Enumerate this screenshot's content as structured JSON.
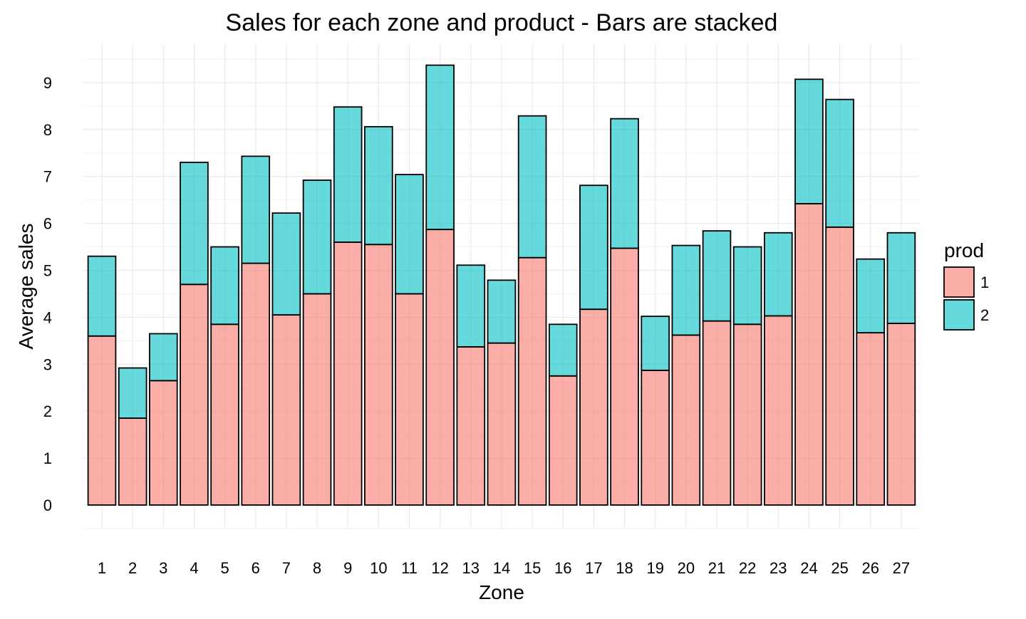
{
  "chart_data": {
    "type": "bar",
    "stacked": true,
    "title": "Sales for each zone and product - Bars are stacked",
    "xlabel": "Zone",
    "ylabel": "Average sales",
    "categories": [
      "1",
      "2",
      "3",
      "4",
      "5",
      "6",
      "7",
      "8",
      "9",
      "10",
      "11",
      "12",
      "13",
      "14",
      "15",
      "16",
      "17",
      "18",
      "19",
      "20",
      "21",
      "22",
      "23",
      "24",
      "25",
      "26",
      "27"
    ],
    "y_ticks": [
      "0",
      "1",
      "2",
      "3",
      "4",
      "5",
      "6",
      "7",
      "8",
      "9"
    ],
    "ylim": [
      -0.7,
      9.8
    ],
    "grid": true,
    "legend": {
      "title": "prod",
      "position": "right"
    },
    "series": [
      {
        "name": "1",
        "color": "#F8766D",
        "values": [
          3.6,
          1.85,
          2.65,
          4.7,
          3.85,
          5.15,
          4.05,
          4.5,
          5.6,
          5.55,
          4.5,
          5.87,
          3.37,
          3.45,
          5.27,
          2.75,
          4.17,
          5.47,
          2.87,
          3.62,
          3.92,
          3.85,
          4.03,
          6.42,
          5.92,
          3.67,
          3.87
        ]
      },
      {
        "name": "2",
        "color": "#00BFC4",
        "values": [
          1.7,
          1.07,
          1.0,
          2.6,
          1.65,
          2.28,
          2.17,
          2.42,
          2.88,
          2.51,
          2.54,
          3.5,
          1.74,
          1.34,
          3.02,
          1.1,
          2.64,
          2.76,
          1.15,
          1.91,
          1.92,
          1.65,
          1.77,
          2.65,
          2.72,
          1.57,
          1.93
        ]
      }
    ],
    "fill_opacity": 0.6
  }
}
